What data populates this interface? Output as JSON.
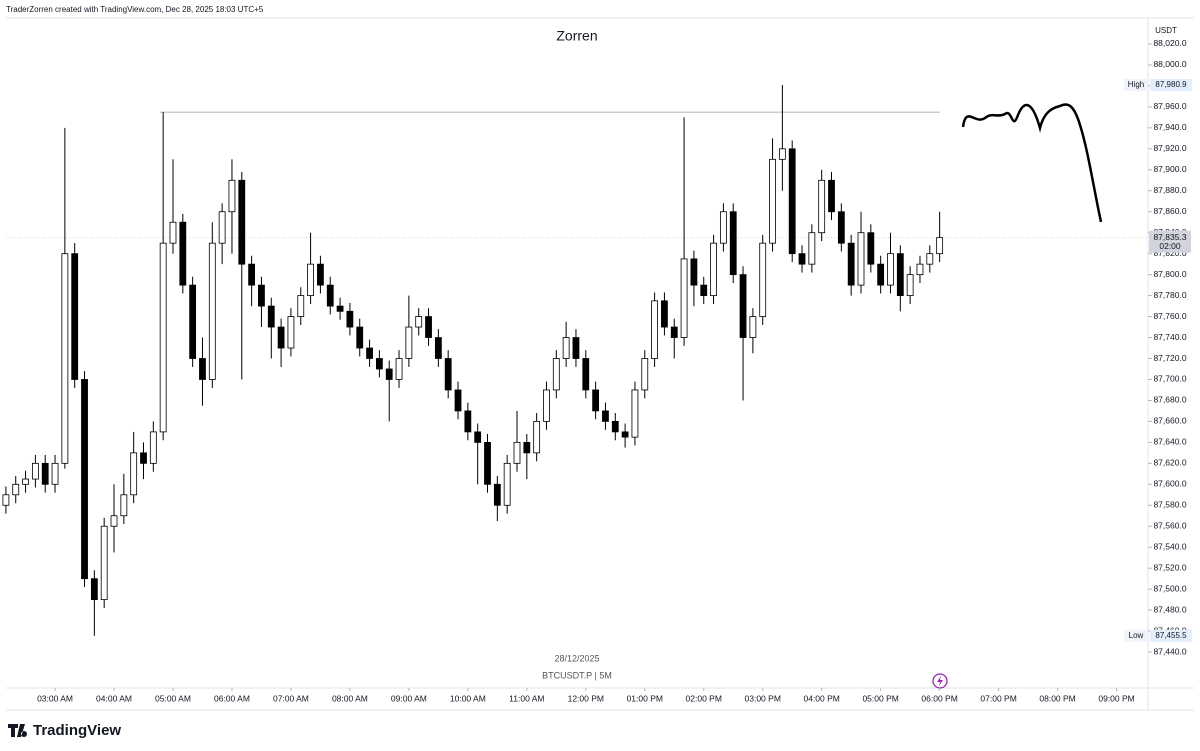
{
  "header": "TraderZorren created with TradingView.com, Dec 28, 2025 18:03 UTC+5",
  "logo": "TradingView",
  "chart_data": {
    "type": "candlestick",
    "title": "Zorren",
    "currency": "USDT",
    "date": "28/12/2025",
    "symbol": "BTCUSDT.P | 5M",
    "x": [
      "02:10 AM",
      "02:20 AM",
      "02:30 AM",
      "02:40 AM",
      "02:50 AM",
      "03:00 AM",
      "03:10 AM",
      "03:20 AM",
      "03:30 AM",
      "03:40 AM",
      "03:50 AM",
      "04:00 AM",
      "04:10 AM",
      "04:20 AM",
      "04:30 AM",
      "04:40 AM",
      "04:50 AM",
      "05:00 AM",
      "05:10 AM",
      "05:20 AM",
      "05:30 AM",
      "05:40 AM",
      "05:50 AM",
      "06:00 AM",
      "06:10 AM",
      "06:20 AM",
      "06:30 AM",
      "06:40 AM",
      "06:50 AM",
      "07:00 AM",
      "07:10 AM",
      "07:20 AM",
      "07:30 AM",
      "07:40 AM",
      "07:50 AM",
      "08:00 AM",
      "08:10 AM",
      "08:20 AM",
      "08:30 AM",
      "08:40 AM",
      "08:50 AM",
      "09:00 AM",
      "09:10 AM",
      "09:20 AM",
      "09:30 AM",
      "09:40 AM",
      "09:50 AM",
      "10:00 AM",
      "10:10 AM",
      "10:20 AM",
      "10:30 AM",
      "10:40 AM",
      "10:50 AM",
      "11:00 AM",
      "11:10 AM",
      "11:20 AM",
      "11:30 AM",
      "11:40 AM",
      "11:50 AM",
      "12:00 PM",
      "12:10 PM",
      "12:20 PM",
      "12:30 PM",
      "12:40 PM",
      "12:50 PM",
      "01:00 PM",
      "01:10 PM",
      "01:20 PM",
      "01:30 PM",
      "01:40 PM",
      "01:50 PM",
      "02:00 PM",
      "02:10 PM",
      "02:20 PM",
      "02:30 PM",
      "02:40 PM",
      "02:50 PM",
      "03:00 PM",
      "03:10 PM",
      "03:20 PM",
      "03:30 PM",
      "03:40 PM",
      "03:50 PM",
      "04:00 PM",
      "04:10 PM",
      "04:20 PM",
      "04:30 PM",
      "04:40 PM",
      "04:50 PM",
      "05:00 PM",
      "05:10 PM",
      "05:20 PM",
      "05:30 PM",
      "05:40 PM",
      "05:50 PM",
      "06:00 PM"
    ],
    "open": [
      87580,
      87590,
      87600,
      87605,
      87620,
      87600,
      87620,
      87820,
      87700,
      87510,
      87490,
      87560,
      87570,
      87590,
      87630,
      87620,
      87650,
      87830,
      87850,
      87790,
      87720,
      87700,
      87830,
      87860,
      87890,
      87810,
      87790,
      87770,
      87750,
      87730,
      87760,
      87780,
      87810,
      87790,
      87770,
      87765,
      87750,
      87730,
      87720,
      87710,
      87700,
      87720,
      87750,
      87760,
      87740,
      87720,
      87690,
      87670,
      87650,
      87640,
      87600,
      87580,
      87620,
      87640,
      87630,
      87660,
      87690,
      87720,
      87740,
      87720,
      87690,
      87670,
      87660,
      87650,
      87645,
      87690,
      87720,
      87775,
      87750,
      87740,
      87815,
      87790,
      87780,
      87830,
      87860,
      87800,
      87740,
      87760,
      87830,
      87910,
      87920,
      87820,
      87810,
      87840,
      87890,
      87860,
      87830,
      87790,
      87840,
      87810,
      87790,
      87820,
      87780,
      87800,
      87810,
      87820
    ],
    "high": [
      87598,
      87608,
      87613,
      87628,
      87628,
      87628,
      87940,
      87830,
      87708,
      87518,
      87568,
      87600,
      87610,
      87650,
      87640,
      87660,
      87955,
      87910,
      87858,
      87798,
      87740,
      87850,
      87868,
      87910,
      87898,
      87818,
      87798,
      87778,
      87758,
      87768,
      87788,
      87840,
      87818,
      87798,
      87778,
      87773,
      87758,
      87738,
      87728,
      87718,
      87728,
      87780,
      87768,
      87768,
      87748,
      87728,
      87698,
      87678,
      87658,
      87648,
      87608,
      87628,
      87670,
      87648,
      87668,
      87698,
      87728,
      87755,
      87748,
      87728,
      87698,
      87678,
      87668,
      87658,
      87698,
      87728,
      87783,
      87783,
      87758,
      87950,
      87823,
      87798,
      87838,
      87868,
      87868,
      87808,
      87768,
      87838,
      87930,
      87980.9,
      87928,
      87828,
      87848,
      87900,
      87898,
      87868,
      87838,
      87860,
      87848,
      87818,
      87840,
      87828,
      87808,
      87818,
      87828,
      87860
    ],
    "low": [
      87572,
      87582,
      87592,
      87597,
      87592,
      87592,
      87615,
      87692,
      87502,
      87455.5,
      87482,
      87535,
      87562,
      87582,
      87605,
      87612,
      87642,
      87820,
      87782,
      87712,
      87675,
      87692,
      87810,
      87820,
      87700,
      87770,
      87750,
      87720,
      87712,
      87722,
      87752,
      87772,
      87782,
      87762,
      87757,
      87742,
      87722,
      87712,
      87702,
      87660,
      87692,
      87712,
      87742,
      87732,
      87712,
      87682,
      87662,
      87642,
      87600,
      87592,
      87565,
      87572,
      87612,
      87605,
      87622,
      87652,
      87682,
      87712,
      87712,
      87682,
      87662,
      87652,
      87642,
      87635,
      87637,
      87682,
      87712,
      87742,
      87720,
      87732,
      87770,
      87772,
      87772,
      87822,
      87792,
      87680,
      87725,
      87752,
      87822,
      87880,
      87812,
      87802,
      87802,
      87832,
      87852,
      87822,
      87780,
      87782,
      87802,
      87782,
      87782,
      87765,
      87772,
      87792,
      87802,
      87812
    ],
    "close": [
      87590,
      87600,
      87605,
      87620,
      87600,
      87620,
      87820,
      87700,
      87510,
      87490,
      87560,
      87570,
      87590,
      87630,
      87620,
      87650,
      87830,
      87850,
      87790,
      87720,
      87700,
      87830,
      87860,
      87890,
      87810,
      87790,
      87770,
      87750,
      87730,
      87760,
      87780,
      87810,
      87790,
      87770,
      87765,
      87750,
      87730,
      87720,
      87710,
      87700,
      87720,
      87750,
      87760,
      87740,
      87720,
      87690,
      87670,
      87650,
      87640,
      87600,
      87580,
      87620,
      87640,
      87630,
      87660,
      87690,
      87720,
      87740,
      87720,
      87690,
      87670,
      87660,
      87650,
      87645,
      87690,
      87720,
      87775,
      87750,
      87740,
      87815,
      87790,
      87780,
      87830,
      87860,
      87800,
      87740,
      87760,
      87830,
      87910,
      87920,
      87820,
      87810,
      87840,
      87890,
      87860,
      87830,
      87790,
      87840,
      87810,
      87790,
      87820,
      87780,
      87800,
      87810,
      87820,
      87835.3
    ],
    "up_color": "#ffffff",
    "down_color": "#000000",
    "edge_color": "#000000",
    "xlim": [
      "02:04 AM",
      "09:32 PM"
    ],
    "xticks": [
      "03:00 AM",
      "04:00 AM",
      "05:00 AM",
      "06:00 AM",
      "07:00 AM",
      "08:00 AM",
      "09:00 AM",
      "10:00 AM",
      "11:00 AM",
      "12:00 PM",
      "01:00 PM",
      "02:00 PM",
      "03:00 PM",
      "04:00 PM",
      "05:00 PM",
      "06:00 PM",
      "07:00 PM",
      "08:00 PM",
      "09:00 PM"
    ],
    "ylim": [
      87405.7,
      88044.8
    ],
    "yticks": [
      {
        "value": 88020,
        "label": "88,020.0"
      },
      {
        "value": 88000,
        "label": "88,000.0"
      },
      {
        "value": 87980,
        "label": "87,980.0"
      },
      {
        "value": 87960,
        "label": "87,960.0"
      },
      {
        "value": 87940,
        "label": "87,940.0"
      },
      {
        "value": 87920,
        "label": "87,920.0"
      },
      {
        "value": 87900,
        "label": "87,900.0"
      },
      {
        "value": 87880,
        "label": "87,880.0"
      },
      {
        "value": 87860,
        "label": "87,860.0"
      },
      {
        "value": 87840,
        "label": "87,840.0"
      },
      {
        "value": 87820,
        "label": "87,820.0"
      },
      {
        "value": 87800,
        "label": "87,800.0"
      },
      {
        "value": 87780,
        "label": "87,780.0"
      },
      {
        "value": 87760,
        "label": "87,760.0"
      },
      {
        "value": 87740,
        "label": "87,740.0"
      },
      {
        "value": 87720,
        "label": "87,720.0"
      },
      {
        "value": 87700,
        "label": "87,700.0"
      },
      {
        "value": 87680,
        "label": "87,680.0"
      },
      {
        "value": 87660,
        "label": "87,660.0"
      },
      {
        "value": 87640,
        "label": "87,640.0"
      },
      {
        "value": 87620,
        "label": "87,620.0"
      },
      {
        "value": 87600,
        "label": "87,600.0"
      },
      {
        "value": 87580,
        "label": "87,580.0"
      },
      {
        "value": 87560,
        "label": "87,560.0"
      },
      {
        "value": 87540,
        "label": "87,540.0"
      },
      {
        "value": 87520,
        "label": "87,520.0"
      },
      {
        "value": 87500,
        "label": "87,500.0"
      },
      {
        "value": 87480,
        "label": "87,480.0"
      },
      {
        "value": 87460,
        "label": "87,460.0"
      },
      {
        "value": 87440,
        "label": "87,440.0"
      }
    ],
    "high_marker": {
      "name": "High",
      "value": 87980.9,
      "value_label": "87,980.9"
    },
    "low_marker": {
      "name": "Low",
      "value": 87455.5,
      "value_label": "87,455.5"
    },
    "last_price": {
      "value": 87835.3,
      "value_label": "87,835.3",
      "countdown": "02:00"
    },
    "level": 87955
  }
}
